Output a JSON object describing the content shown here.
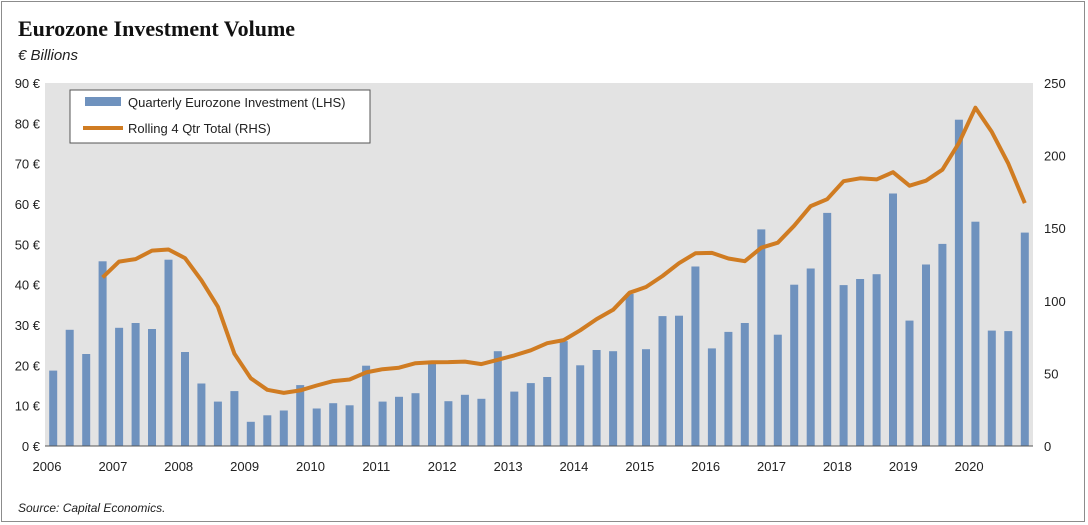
{
  "page": {
    "title": "Eurozone Investment Volume",
    "subtitle": "€ Billions",
    "source": "Source: Capital Economics."
  },
  "chart_data": {
    "type": "bar",
    "title": "Eurozone Investment Volume",
    "ylabel_left": "€ Billions",
    "ylim_left": [
      0,
      90
    ],
    "ylim_right": [
      0,
      250
    ],
    "y_ticks_left": [
      "0 €",
      "10 €",
      "20 €",
      "30 €",
      "40 €",
      "50 €",
      "60 €",
      "70 €",
      "80 €",
      "90 €"
    ],
    "y_ticks_right": [
      "0",
      "50",
      "100",
      "150",
      "200",
      "250"
    ],
    "x_ticks": [
      "2006",
      "2007",
      "2008",
      "2009",
      "2010",
      "2011",
      "2012",
      "2013",
      "2014",
      "2015",
      "2016",
      "2017",
      "2018",
      "2019",
      "2020"
    ],
    "x_start": 2006,
    "legend_position": "top-left",
    "grid": false,
    "colors": {
      "bars": "#6f92be",
      "line": "#d07c22",
      "plot_bg": "#e3e3e3"
    },
    "series": [
      {
        "name": "Quarterly Eurozone Investment (LHS)",
        "axis": "left",
        "type": "bar",
        "values": [
          18.7,
          28.8,
          22.8,
          45.8,
          29.3,
          30.5,
          29.0,
          46.2,
          23.3,
          15.5,
          11.0,
          13.6,
          6.0,
          7.6,
          8.8,
          15.1,
          9.3,
          10.6,
          10.1,
          19.9,
          11.0,
          12.2,
          13.1,
          20.9,
          11.1,
          12.7,
          11.7,
          23.5,
          13.5,
          15.6,
          17.1,
          26.0,
          20.0,
          23.8,
          23.5,
          37.7,
          24.0,
          32.2,
          32.3,
          44.5,
          24.2,
          28.3,
          30.5,
          53.7,
          27.6,
          40.0,
          44.0,
          57.8,
          39.9,
          41.4,
          42.6,
          62.6,
          31.1,
          45.0,
          50.1,
          80.9,
          55.6,
          28.6,
          28.5,
          52.9
        ]
      },
      {
        "name": "Rolling 4 Qtr Total (RHS)",
        "axis": "right",
        "type": "line",
        "values": [
          null,
          null,
          null,
          116.1,
          127.0,
          128.7,
          134.6,
          135.3,
          129.4,
          114.1,
          95.9,
          63.6,
          46.6,
          38.7,
          36.6,
          38.3,
          41.7,
          44.7,
          45.8,
          50.7,
          52.9,
          53.9,
          57.0,
          57.7,
          57.8,
          58.1,
          56.4,
          59.4,
          62.4,
          65.9,
          70.8,
          72.9,
          79.7,
          87.4,
          93.8,
          105.6,
          109.5,
          117.1,
          125.9,
          132.7,
          133.0,
          129.1,
          127.3,
          136.6,
          140.0,
          151.7,
          165.2,
          170.0,
          182.4,
          184.4,
          183.6,
          188.6,
          179.3,
          182.7,
          190.3,
          208.6,
          233.0,
          216.3,
          194.5,
          167.3
        ]
      }
    ]
  }
}
